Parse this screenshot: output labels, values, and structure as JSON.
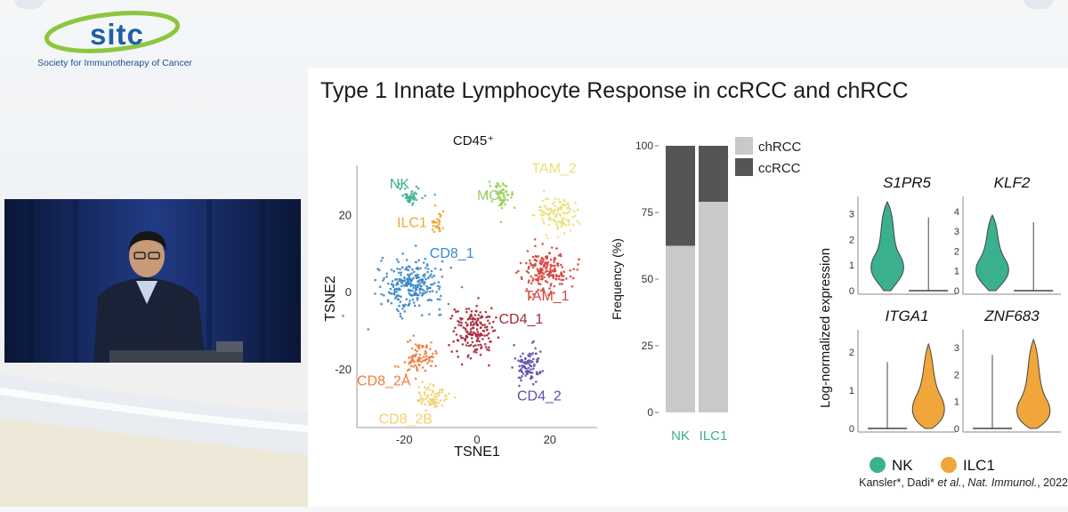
{
  "logo": {
    "text": "sitc",
    "subtitle": "Society for Immunotherapy of Cancer"
  },
  "slide": {
    "title": "Type 1 Innate Lymphocyte Response in ccRCC and chRCC",
    "citation_prefix": "Kansler*, Dadi* ",
    "citation_etal": "et al.",
    "citation_mid": ", ",
    "citation_journal": "Nat. Immunol.",
    "citation_suffix": ", 2022"
  },
  "chart_data": [
    {
      "type": "scatter",
      "title": "CD45⁺",
      "xlabel": "TSNE1",
      "ylabel": "TSNE2",
      "xticks": [
        "-20",
        "0",
        "20"
      ],
      "yticks": [
        "20",
        "0",
        "-20"
      ],
      "xlim": [
        -33,
        33
      ],
      "ylim": [
        -35,
        33
      ],
      "clusters": [
        {
          "name": "NK",
          "color": "#3bb08f",
          "center": [
            -18,
            25
          ]
        },
        {
          "name": "ILC1",
          "color": "#f0a63a",
          "center": [
            -11,
            18
          ]
        },
        {
          "name": "CD8_1",
          "color": "#3a86c8",
          "center": [
            -18,
            2
          ]
        },
        {
          "name": "MO",
          "color": "#9ccf5f",
          "center": [
            7,
            25
          ]
        },
        {
          "name": "TAM_2",
          "color": "#e9e07a",
          "center": [
            22,
            20
          ]
        },
        {
          "name": "TAM_1",
          "color": "#d6433b",
          "center": [
            19,
            6
          ]
        },
        {
          "name": "CD4_1",
          "color": "#a8263a",
          "center": [
            -1,
            -10
          ]
        },
        {
          "name": "CD4_2",
          "color": "#5a51a8",
          "center": [
            14,
            -19
          ]
        },
        {
          "name": "CD8_2A",
          "color": "#f07b3c",
          "center": [
            -16,
            -17
          ]
        },
        {
          "name": "CD8_2B",
          "color": "#f4cf6a",
          "center": [
            -12,
            -27
          ]
        }
      ]
    },
    {
      "type": "bar",
      "stacked": true,
      "ylabel": "Frequency (%)",
      "categories": [
        "NK",
        "ILC1"
      ],
      "ylim": [
        0,
        100
      ],
      "yticks": [
        "0",
        "25",
        "50",
        "75",
        "100"
      ],
      "series": [
        {
          "name": "chRCC",
          "values": [
            62.5,
            79
          ],
          "color": "#c9c9c9"
        },
        {
          "name": "ccRCC",
          "values": [
            37.5,
            21
          ],
          "color": "#555555"
        }
      ]
    },
    {
      "type": "violin",
      "ylabel": "Log-normalized expression",
      "panels": [
        {
          "gene": "S1PR5",
          "yticks": [
            "0",
            "1",
            "2",
            "3"
          ],
          "colored": "NK",
          "color": "#3bb08f"
        },
        {
          "gene": "KLF2",
          "yticks": [
            "0",
            "1",
            "2",
            "3",
            "4"
          ],
          "colored": "NK",
          "color": "#3bb08f"
        },
        {
          "gene": "ITGA1",
          "yticks": [
            "0",
            "1",
            "2"
          ],
          "colored": "ILC1",
          "color": "#f0a63a"
        },
        {
          "gene": "ZNF683",
          "yticks": [
            "0",
            "1",
            "2",
            "3"
          ],
          "colored": "ILC1",
          "color": "#f0a63a"
        }
      ],
      "legend": [
        {
          "name": "NK",
          "color": "#3bb08f"
        },
        {
          "name": "ILC1",
          "color": "#f0a63a"
        }
      ]
    }
  ]
}
